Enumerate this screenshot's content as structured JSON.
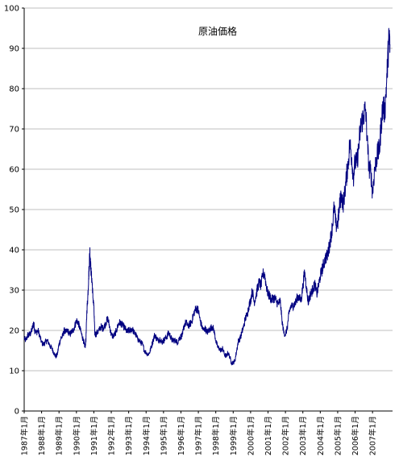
{
  "chart_data": {
    "type": "line",
    "title": "原油価格",
    "xlabel": "",
    "ylabel": "",
    "ylim": [
      0,
      100
    ],
    "ytick_step": 10,
    "grid": true,
    "line_color": "#000080",
    "grid_color": "#bfbfbf",
    "x_ticks": [
      "1987年1月",
      "1988年1月",
      "1989年1月",
      "1990年1月",
      "1991年1月",
      "1992年1月",
      "1993年1月",
      "1994年1月",
      "1995年1月",
      "1996年1月",
      "1997年1月",
      "1998年1月",
      "1999年1月",
      "2000年1月",
      "2001年1月",
      "2002年1月",
      "2003年1月",
      "2004年1月",
      "2005年1月",
      "2006年1月",
      "2007年1月"
    ],
    "x_start": 1987.0,
    "x_end": 2008.15,
    "series": [
      {
        "values": [
          [
            1987.0,
            18.0
          ],
          [
            1987.1,
            17.5
          ],
          [
            1987.2,
            18.8
          ],
          [
            1987.3,
            19.0
          ],
          [
            1987.4,
            19.5
          ],
          [
            1987.5,
            21.0
          ],
          [
            1987.55,
            22.0
          ],
          [
            1987.6,
            20.0
          ],
          [
            1987.7,
            19.5
          ],
          [
            1987.8,
            20.0
          ],
          [
            1987.9,
            18.5
          ],
          [
            1988.0,
            17.0
          ],
          [
            1988.1,
            16.5
          ],
          [
            1988.2,
            17.0
          ],
          [
            1988.3,
            17.5
          ],
          [
            1988.4,
            17.0
          ],
          [
            1988.5,
            16.0
          ],
          [
            1988.6,
            15.5
          ],
          [
            1988.7,
            14.5
          ],
          [
            1988.8,
            13.5
          ],
          [
            1988.9,
            14.0
          ],
          [
            1989.0,
            16.5
          ],
          [
            1989.1,
            18.0
          ],
          [
            1989.2,
            18.5
          ],
          [
            1989.3,
            20.0
          ],
          [
            1989.4,
            19.5
          ],
          [
            1989.5,
            20.0
          ],
          [
            1989.6,
            19.0
          ],
          [
            1989.7,
            19.5
          ],
          [
            1989.8,
            20.0
          ],
          [
            1989.9,
            21.0
          ],
          [
            1990.0,
            22.5
          ],
          [
            1990.1,
            22.0
          ],
          [
            1990.2,
            20.5
          ],
          [
            1990.3,
            19.0
          ],
          [
            1990.4,
            17.5
          ],
          [
            1990.45,
            16.5
          ],
          [
            1990.5,
            16.0
          ],
          [
            1990.55,
            18.0
          ],
          [
            1990.6,
            25.0
          ],
          [
            1990.65,
            28.0
          ],
          [
            1990.7,
            33.0
          ],
          [
            1990.73,
            36.0
          ],
          [
            1990.77,
            40.0
          ],
          [
            1990.8,
            37.0
          ],
          [
            1990.85,
            34.0
          ],
          [
            1990.9,
            32.0
          ],
          [
            1990.95,
            28.0
          ],
          [
            1991.0,
            26.0
          ],
          [
            1991.05,
            19.5
          ],
          [
            1991.1,
            19.0
          ],
          [
            1991.2,
            19.5
          ],
          [
            1991.3,
            20.0
          ],
          [
            1991.4,
            21.0
          ],
          [
            1991.5,
            20.5
          ],
          [
            1991.6,
            21.0
          ],
          [
            1991.7,
            22.0
          ],
          [
            1991.8,
            23.0
          ],
          [
            1991.9,
            21.0
          ],
          [
            1992.0,
            19.0
          ],
          [
            1992.1,
            18.5
          ],
          [
            1992.2,
            19.0
          ],
          [
            1992.3,
            20.0
          ],
          [
            1992.4,
            21.5
          ],
          [
            1992.5,
            22.0
          ],
          [
            1992.6,
            21.5
          ],
          [
            1992.7,
            21.0
          ],
          [
            1992.8,
            20.5
          ],
          [
            1992.9,
            19.5
          ],
          [
            1993.0,
            20.0
          ],
          [
            1993.1,
            20.0
          ],
          [
            1993.2,
            20.5
          ],
          [
            1993.3,
            19.5
          ],
          [
            1993.4,
            19.0
          ],
          [
            1993.5,
            18.0
          ],
          [
            1993.6,
            17.5
          ],
          [
            1993.7,
            17.0
          ],
          [
            1993.8,
            16.5
          ],
          [
            1993.9,
            15.0
          ],
          [
            1994.0,
            14.5
          ],
          [
            1994.1,
            14.0
          ],
          [
            1994.2,
            14.5
          ],
          [
            1994.3,
            16.0
          ],
          [
            1994.4,
            17.5
          ],
          [
            1994.5,
            19.0
          ],
          [
            1994.6,
            18.0
          ],
          [
            1994.7,
            17.5
          ],
          [
            1994.8,
            18.0
          ],
          [
            1994.9,
            17.0
          ],
          [
            1995.0,
            17.5
          ],
          [
            1995.1,
            18.0
          ],
          [
            1995.2,
            18.5
          ],
          [
            1995.3,
            19.5
          ],
          [
            1995.4,
            18.5
          ],
          [
            1995.5,
            17.5
          ],
          [
            1995.6,
            17.5
          ],
          [
            1995.7,
            17.5
          ],
          [
            1995.8,
            17.0
          ],
          [
            1995.9,
            18.0
          ],
          [
            1996.0,
            18.5
          ],
          [
            1996.1,
            19.0
          ],
          [
            1996.2,
            21.5
          ],
          [
            1996.3,
            22.0
          ],
          [
            1996.4,
            21.0
          ],
          [
            1996.5,
            21.5
          ],
          [
            1996.6,
            22.0
          ],
          [
            1996.7,
            23.5
          ],
          [
            1996.8,
            25.0
          ],
          [
            1996.9,
            25.5
          ],
          [
            1997.0,
            25.0
          ],
          [
            1997.1,
            22.5
          ],
          [
            1997.2,
            21.0
          ],
          [
            1997.3,
            20.0
          ],
          [
            1997.4,
            20.5
          ],
          [
            1997.5,
            19.5
          ],
          [
            1997.6,
            20.0
          ],
          [
            1997.7,
            20.5
          ],
          [
            1997.8,
            21.0
          ],
          [
            1997.9,
            20.0
          ],
          [
            1998.0,
            17.5
          ],
          [
            1998.1,
            16.0
          ],
          [
            1998.2,
            15.5
          ],
          [
            1998.3,
            15.0
          ],
          [
            1998.4,
            15.5
          ],
          [
            1998.5,
            14.0
          ],
          [
            1998.6,
            13.5
          ],
          [
            1998.7,
            14.5
          ],
          [
            1998.8,
            13.5
          ],
          [
            1998.9,
            12.0
          ],
          [
            1999.0,
            12.0
          ],
          [
            1999.1,
            12.5
          ],
          [
            1999.2,
            15.0
          ],
          [
            1999.3,
            17.5
          ],
          [
            1999.4,
            18.0
          ],
          [
            1999.5,
            19.5
          ],
          [
            1999.6,
            21.0
          ],
          [
            1999.7,
            23.0
          ],
          [
            1999.8,
            24.0
          ],
          [
            1999.9,
            26.0
          ],
          [
            2000.0,
            27.5
          ],
          [
            2000.1,
            30.0
          ],
          [
            2000.2,
            27.0
          ],
          [
            2000.3,
            28.5
          ],
          [
            2000.4,
            30.5
          ],
          [
            2000.5,
            32.0
          ],
          [
            2000.6,
            31.0
          ],
          [
            2000.7,
            34.0
          ],
          [
            2000.8,
            34.0
          ],
          [
            2000.9,
            31.0
          ],
          [
            2001.0,
            29.0
          ],
          [
            2001.1,
            28.5
          ],
          [
            2001.2,
            27.5
          ],
          [
            2001.3,
            28.0
          ],
          [
            2001.4,
            28.0
          ],
          [
            2001.5,
            27.0
          ],
          [
            2001.6,
            26.5
          ],
          [
            2001.7,
            27.5
          ],
          [
            2001.8,
            22.5
          ],
          [
            2001.9,
            19.5
          ],
          [
            2002.0,
            19.0
          ],
          [
            2002.1,
            20.5
          ],
          [
            2002.2,
            24.0
          ],
          [
            2002.3,
            26.0
          ],
          [
            2002.4,
            26.0
          ],
          [
            2002.5,
            26.5
          ],
          [
            2002.6,
            27.0
          ],
          [
            2002.7,
            28.5
          ],
          [
            2002.8,
            28.0
          ],
          [
            2002.9,
            27.5
          ],
          [
            2003.0,
            31.0
          ],
          [
            2003.1,
            34.5
          ],
          [
            2003.2,
            31.0
          ],
          [
            2003.3,
            27.0
          ],
          [
            2003.4,
            28.5
          ],
          [
            2003.5,
            29.5
          ],
          [
            2003.6,
            30.5
          ],
          [
            2003.7,
            31.5
          ],
          [
            2003.8,
            29.0
          ],
          [
            2003.9,
            31.0
          ],
          [
            2004.0,
            33.5
          ],
          [
            2004.1,
            35.0
          ],
          [
            2004.2,
            36.5
          ],
          [
            2004.3,
            38.0
          ],
          [
            2004.4,
            38.5
          ],
          [
            2004.5,
            40.5
          ],
          [
            2004.6,
            43.0
          ],
          [
            2004.7,
            46.0
          ],
          [
            2004.8,
            51.0
          ],
          [
            2004.9,
            46.0
          ],
          [
            2005.0,
            46.5
          ],
          [
            2005.1,
            50.5
          ],
          [
            2005.2,
            54.0
          ],
          [
            2005.3,
            51.0
          ],
          [
            2005.4,
            54.0
          ],
          [
            2005.5,
            58.0
          ],
          [
            2005.6,
            61.5
          ],
          [
            2005.7,
            66.5
          ],
          [
            2005.8,
            63.0
          ],
          [
            2005.9,
            58.0
          ],
          [
            2006.0,
            62.0
          ],
          [
            2006.1,
            61.5
          ],
          [
            2006.2,
            65.0
          ],
          [
            2006.3,
            70.0
          ],
          [
            2006.4,
            72.0
          ],
          [
            2006.5,
            73.5
          ],
          [
            2006.6,
            75.0
          ],
          [
            2006.7,
            67.0
          ],
          [
            2006.8,
            60.0
          ],
          [
            2006.9,
            59.5
          ],
          [
            2007.0,
            54.0
          ],
          [
            2007.1,
            59.0
          ],
          [
            2007.2,
            62.0
          ],
          [
            2007.3,
            64.0
          ],
          [
            2007.4,
            65.0
          ],
          [
            2007.5,
            71.5
          ],
          [
            2007.6,
            76.0
          ],
          [
            2007.7,
            74.0
          ],
          [
            2007.8,
            81.0
          ],
          [
            2007.9,
            89.0
          ],
          [
            2007.95,
            93.0
          ],
          [
            2008.0,
            91.0
          ]
        ]
      }
    ]
  }
}
